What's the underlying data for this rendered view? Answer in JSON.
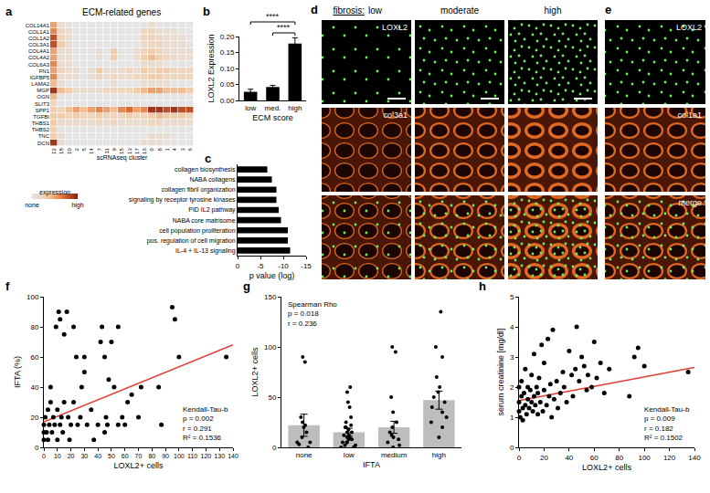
{
  "chart_data": [
    {
      "panel": "a",
      "type": "heatmap",
      "title": "ECM-related genes",
      "x_label": "scRNAseq cluster",
      "columns": [
        "12",
        "18",
        "10",
        "2",
        "5",
        "14",
        "7",
        "11",
        "9",
        "15",
        "13",
        "17",
        "16",
        "0",
        "8",
        "1",
        "4",
        "3",
        "6"
      ],
      "rows": [
        "COL14A1",
        "COL1A1",
        "COL1A2",
        "COL3A1",
        "COL4A1",
        "COL4A2",
        "COL6A3",
        "FN1",
        "IGFBP5",
        "LAMA2",
        "MGP",
        "OGN",
        "SLIT3",
        "SPP1",
        "TGFBI",
        "THBS1",
        "THBS2",
        "TNC",
        "DCN"
      ],
      "cells": [
        [
          0.5,
          0.1,
          0,
          0,
          0,
          0,
          0,
          0,
          0,
          0,
          0,
          0,
          0,
          0.1,
          0,
          0,
          0,
          0,
          0
        ],
        [
          0.6,
          0.2,
          0.1,
          0,
          0,
          0,
          0,
          0,
          0,
          0,
          0,
          0,
          0.2,
          0.2,
          0.1,
          0.1,
          0.1,
          0,
          0
        ],
        [
          0.8,
          0.2,
          0.1,
          0,
          0,
          0,
          0,
          0,
          0,
          0,
          0,
          0,
          0.2,
          0.2,
          0.2,
          0.1,
          0.1,
          0.1,
          0
        ],
        [
          0.8,
          0.3,
          0.1,
          0,
          0,
          0,
          0,
          0,
          0,
          0,
          0,
          0,
          0.1,
          0.2,
          0.2,
          0.1,
          0.1,
          0.1,
          0
        ],
        [
          0.5,
          0.1,
          0.1,
          0,
          0,
          0,
          0.1,
          0,
          0.3,
          0,
          0,
          0.1,
          0.2,
          0.3,
          0.2,
          0.1,
          0.1,
          0.1,
          0.1
        ],
        [
          0.5,
          0.1,
          0.1,
          0,
          0,
          0,
          0.1,
          0,
          0.3,
          0,
          0,
          0.1,
          0.3,
          0.4,
          0.3,
          0.2,
          0.1,
          0.1,
          0.1
        ],
        [
          0.6,
          0.1,
          0.1,
          0,
          0,
          0,
          0,
          0,
          0,
          0,
          0,
          0,
          0.1,
          0.1,
          0.1,
          0,
          0,
          0,
          0
        ],
        [
          0.5,
          0.2,
          0.1,
          0.1,
          0,
          0.1,
          0.3,
          0.1,
          0.1,
          0.1,
          0.2,
          0.1,
          0.3,
          0.2,
          0.3,
          0.3,
          0.2,
          0.2,
          0.2
        ],
        [
          0.6,
          0.1,
          0.1,
          0.1,
          0,
          0.1,
          0.2,
          0.1,
          0.2,
          0.1,
          0.1,
          0.2,
          0.2,
          0.3,
          0.3,
          0.2,
          0.2,
          0.2,
          0.2
        ],
        [
          0.4,
          0.1,
          0,
          0,
          0,
          0,
          0,
          0,
          0.1,
          0,
          0,
          0,
          0.1,
          0.1,
          0.1,
          0.1,
          0,
          0,
          0
        ],
        [
          0.9,
          0.4,
          0.3,
          0.1,
          0.1,
          0.1,
          0.1,
          0.2,
          0.2,
          0.2,
          0.2,
          0.3,
          0.4,
          0.5,
          0.5,
          0.4,
          0.4,
          0.4,
          0.3
        ],
        [
          0.4,
          0,
          0,
          0,
          0,
          0,
          0,
          0,
          0,
          0,
          0,
          0,
          0,
          0,
          0,
          0,
          0,
          0,
          0
        ],
        [
          0.2,
          0,
          0,
          0,
          0,
          0,
          0,
          0,
          0,
          0,
          0,
          0,
          0,
          0,
          0,
          0,
          0,
          0,
          0
        ],
        [
          0.3,
          0.2,
          0.4,
          0.5,
          0.4,
          0.5,
          0.6,
          0.5,
          0.4,
          0.6,
          0.7,
          0.5,
          0.6,
          0.9,
          0.9,
          0.8,
          0.9,
          0.8,
          0.8
        ],
        [
          0.3,
          0.3,
          0.2,
          0.3,
          0.2,
          0.2,
          0.3,
          0.2,
          0.2,
          0.2,
          0.3,
          0.2,
          0.2,
          0.3,
          0.4,
          0.3,
          0.3,
          0.3,
          0.2
        ],
        [
          0.3,
          0.1,
          0.1,
          0.1,
          0.1,
          0.1,
          0.2,
          0.1,
          0.2,
          0.1,
          0.1,
          0.1,
          0.1,
          0.2,
          0.2,
          0.1,
          0.1,
          0.1,
          0.1
        ],
        [
          0.3,
          0,
          0,
          0,
          0,
          0,
          0,
          0,
          0,
          0,
          0,
          0,
          0,
          0,
          0,
          0,
          0,
          0,
          0
        ],
        [
          0.3,
          0.1,
          0,
          0,
          0,
          0,
          0,
          0,
          0,
          0,
          0,
          0,
          0,
          0.1,
          0.1,
          0.1,
          0,
          0,
          0
        ],
        [
          0.9,
          0.1,
          0,
          0,
          0,
          0,
          0,
          0,
          0,
          0,
          0,
          0,
          0.1,
          0.1,
          0.1,
          0,
          0,
          0,
          0
        ]
      ],
      "colorbar": {
        "title": "expression",
        "range": [
          0,
          1
        ],
        "ticks": [
          {
            "value": 0,
            "label": "none"
          },
          {
            "value": 1,
            "label": "high"
          }
        ]
      }
    },
    {
      "panel": "b",
      "type": "bar",
      "x_label": "ECM score",
      "y_label": "LOXL2 Expression",
      "categories": [
        "low",
        "med.",
        "high"
      ],
      "values": [
        0.027,
        0.042,
        0.178
      ],
      "errors": [
        0.008,
        0.005,
        0.018
      ],
      "color": "#000000",
      "ylim": [
        0,
        0.2
      ],
      "yticks": [
        {
          "value": 0,
          "label": "0.00"
        },
        {
          "value": 0.05,
          "label": "0.05"
        },
        {
          "value": 0.1,
          "label": "0.10"
        },
        {
          "value": 0.15,
          "label": "0.15"
        },
        {
          "value": 0.2,
          "label": "0.20"
        }
      ],
      "significance": [
        {
          "from": "low",
          "to": "high",
          "label": "****"
        },
        {
          "from": "med.",
          "to": "high",
          "label": "****"
        }
      ]
    },
    {
      "panel": "c",
      "type": "bar",
      "orientation": "horizontal",
      "x_label": "p value (log)",
      "categories": [
        "collagen biosynthesis",
        "NABA collagens",
        "collagen fibril organization",
        "signaling by receptor tyrosine kinases",
        "PID IL2 pathway",
        "NABA core matrisome",
        "cell population proliferation",
        "pos. regulation of cell migration",
        "IL-4 + IL-13 signaling"
      ],
      "values": [
        -6.5,
        -7.5,
        -8.5,
        -8.5,
        -9,
        -9.5,
        -11,
        -11,
        -11.5
      ],
      "color": "#000000",
      "xlim": [
        0,
        -15
      ],
      "xticks": [
        0,
        -5,
        -10,
        -15
      ]
    },
    {
      "panel": "f",
      "type": "scatter",
      "x_label": "LOXL2+ cells",
      "y_label": "IFTA (%)",
      "color": "#000000",
      "marker": "circle",
      "x": [
        0,
        0,
        0,
        1,
        2,
        3,
        3,
        4,
        5,
        5,
        6,
        7,
        8,
        9,
        10,
        10,
        11,
        12,
        12,
        13,
        14,
        15,
        15,
        17,
        18,
        19,
        20,
        22,
        22,
        24,
        25,
        27,
        28,
        30,
        30,
        32,
        35,
        37,
        40,
        42,
        43,
        45,
        45,
        46,
        47,
        48,
        50,
        52,
        55,
        55,
        58,
        60,
        62,
        65,
        70,
        72,
        85,
        87,
        95,
        97,
        100,
        135
      ],
      "y": [
        5,
        10,
        15,
        20,
        10,
        5,
        25,
        15,
        40,
        30,
        10,
        20,
        15,
        80,
        5,
        25,
        90,
        85,
        15,
        20,
        10,
        75,
        30,
        90,
        20,
        5,
        15,
        30,
        80,
        60,
        15,
        20,
        40,
        60,
        50,
        15,
        25,
        5,
        15,
        70,
        80,
        10,
        60,
        20,
        15,
        45,
        70,
        40,
        15,
        80,
        20,
        15,
        30,
        35,
        20,
        40,
        40,
        15,
        93,
        85,
        60,
        60
      ],
      "trend": {
        "x": [
          0,
          140
        ],
        "y": [
          17,
          68
        ],
        "color": "#e53a2f"
      },
      "stats": [
        "Kendall-Tau-b",
        "p = 0.002",
        "r = 0.291",
        "R² = 0.1536"
      ],
      "xlim": [
        0,
        140
      ],
      "xticks": [
        0,
        10,
        20,
        30,
        40,
        50,
        60,
        70,
        80,
        90,
        100,
        110,
        120,
        130,
        140
      ],
      "ylim": [
        0,
        100
      ],
      "yticks": [
        0,
        20,
        40,
        60,
        80,
        100
      ]
    },
    {
      "panel": "g",
      "type": "bar",
      "x_label": "IFTA",
      "y_label": "LOXL2+ cells",
      "categories": [
        "none",
        "low",
        "medium",
        "high"
      ],
      "values": [
        22,
        15,
        20,
        47
      ],
      "errors": [
        11,
        4,
        6,
        9
      ],
      "color": "#bdbdbd",
      "points": [
        [
          0,
          3,
          5,
          5,
          10,
          15,
          20,
          22,
          25,
          30,
          85,
          90
        ],
        [
          0,
          0,
          2,
          2,
          5,
          5,
          5,
          8,
          8,
          10,
          10,
          12,
          12,
          15,
          15,
          18,
          20,
          20,
          22,
          25,
          30,
          40,
          45,
          55,
          60
        ],
        [
          0,
          2,
          5,
          8,
          10,
          12,
          15,
          20,
          25,
          35,
          50,
          95,
          100
        ],
        [
          10,
          20,
          25,
          30,
          35,
          40,
          45,
          50,
          55,
          60,
          70,
          90,
          100,
          135
        ]
      ],
      "stats": [
        "Spearman Rho",
        "p = 0.018",
        "r = 0.236"
      ],
      "ylim": [
        0,
        150
      ],
      "yticks": [
        0,
        50,
        100,
        150
      ]
    },
    {
      "panel": "h",
      "type": "scatter",
      "x_label": "LOXL2+ cells",
      "y_label": "serum creatinine [mg/dl]",
      "color": "#000000",
      "marker": "circle",
      "x": [
        0,
        0,
        0,
        1,
        2,
        2,
        3,
        3,
        4,
        5,
        5,
        6,
        7,
        7,
        8,
        9,
        10,
        10,
        11,
        12,
        12,
        13,
        14,
        15,
        15,
        16,
        17,
        18,
        19,
        20,
        20,
        22,
        23,
        24,
        25,
        26,
        27,
        28,
        30,
        31,
        33,
        35,
        36,
        38,
        40,
        42,
        43,
        45,
        46,
        48,
        50,
        52,
        54,
        55,
        58,
        60,
        62,
        65,
        68,
        72,
        88,
        92,
        95,
        100,
        135
      ],
      "y": [
        1.2,
        1.5,
        2.0,
        1.0,
        1.7,
        2.2,
        1.3,
        0.9,
        1.8,
        1.4,
        2.6,
        1.1,
        1.6,
        2.0,
        1.3,
        1.9,
        1.5,
        2.4,
        1.2,
        1.7,
        3.1,
        1.4,
        2.0,
        1.1,
        1.8,
        2.3,
        1.5,
        3.4,
        1.2,
        1.9,
        2.8,
        1.4,
        3.6,
        1.7,
        2.1,
        1.0,
        3.9,
        1.6,
        2.2,
        1.3,
        1.8,
        2.5,
        2.0,
        1.5,
        3.2,
        2.4,
        1.7,
        2.6,
        4.0,
        2.2,
        3.0,
        2.7,
        1.9,
        2.4,
        2.0,
        3.5,
        2.3,
        2.8,
        1.8,
        2.6,
        1.7,
        3.0,
        3.3,
        2.7,
        2.5
      ],
      "trend": {
        "x": [
          0,
          140
        ],
        "y": [
          1.55,
          2.65
        ],
        "color": "#e53a2f"
      },
      "stats": [
        "Kendall-Tau-b",
        "p = 0.009",
        "r = 0.182",
        "R² = 0.1502"
      ],
      "xlim": [
        0,
        140
      ],
      "xticks": [
        0,
        20,
        40,
        60,
        80,
        100,
        120,
        140
      ],
      "ylim": [
        0,
        5
      ],
      "yticks": [
        0,
        1,
        2,
        3,
        4,
        5
      ]
    }
  ],
  "micrographs": [
    {
      "panel": "d",
      "header": "fibrosis:",
      "columns": [
        "low",
        "moderate",
        "high"
      ],
      "row_labels": [
        "LOXL2",
        "col3a1"
      ]
    },
    {
      "panel": "e",
      "row_labels": [
        "LOXL2",
        "col1a1",
        "merge"
      ]
    }
  ]
}
